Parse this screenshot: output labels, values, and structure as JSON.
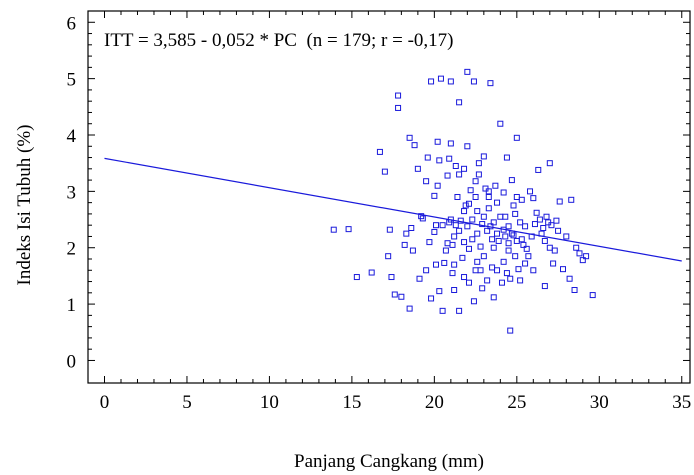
{
  "chart_data": {
    "type": "scatter",
    "annotation": "ITT = 3,585 - 0,052 * PC  (n = 179; r = -0,17)",
    "xlabel": "Panjang Cangkang (mm)",
    "ylabel": "Indeks Isi Tubuh (%)",
    "xlim": [
      -1,
      35.5
    ],
    "ylim": [
      -0.4,
      6.2
    ],
    "x_ticks": [
      0,
      5,
      10,
      15,
      20,
      25,
      30,
      35
    ],
    "y_ticks": [
      0,
      1,
      2,
      3,
      4,
      5,
      6
    ],
    "grid": false,
    "colors": {
      "points": "#1a1adb",
      "line": "#1a1adb",
      "axes": "#000000"
    },
    "regression": {
      "intercept": 3.585,
      "slope": -0.052,
      "x_range": [
        0,
        35
      ]
    },
    "points": [
      [
        13.9,
        2.32
      ],
      [
        14.8,
        2.33
      ],
      [
        15.3,
        1.48
      ],
      [
        16.2,
        1.56
      ],
      [
        16.7,
        3.7
      ],
      [
        17.0,
        3.35
      ],
      [
        17.2,
        1.85
      ],
      [
        17.3,
        2.32
      ],
      [
        17.4,
        1.48
      ],
      [
        17.6,
        1.17
      ],
      [
        17.8,
        4.7
      ],
      [
        17.8,
        4.48
      ],
      [
        18.0,
        1.13
      ],
      [
        18.2,
        2.05
      ],
      [
        18.3,
        2.25
      ],
      [
        18.5,
        0.92
      ],
      [
        18.5,
        3.95
      ],
      [
        18.7,
        1.95
      ],
      [
        18.8,
        3.82
      ],
      [
        19.0,
        3.4
      ],
      [
        19.2,
        2.56
      ],
      [
        19.3,
        2.52
      ],
      [
        19.5,
        3.18
      ],
      [
        19.5,
        1.6
      ],
      [
        19.6,
        3.6
      ],
      [
        19.8,
        4.95
      ],
      [
        19.8,
        1.1
      ],
      [
        20.0,
        2.92
      ],
      [
        20.0,
        2.28
      ],
      [
        20.1,
        1.7
      ],
      [
        20.1,
        2.4
      ],
      [
        20.2,
        3.88
      ],
      [
        20.3,
        1.23
      ],
      [
        20.3,
        3.55
      ],
      [
        20.4,
        5.0
      ],
      [
        20.5,
        0.88
      ],
      [
        20.5,
        2.4
      ],
      [
        20.6,
        1.73
      ],
      [
        20.8,
        3.28
      ],
      [
        20.8,
        2.08
      ],
      [
        20.9,
        3.58
      ],
      [
        21.0,
        4.95
      ],
      [
        21.0,
        3.85
      ],
      [
        21.0,
        2.5
      ],
      [
        21.1,
        1.55
      ],
      [
        21.2,
        2.2
      ],
      [
        21.2,
        1.7
      ],
      [
        21.2,
        1.25
      ],
      [
        21.3,
        3.45
      ],
      [
        21.3,
        2.4
      ],
      [
        21.5,
        4.58
      ],
      [
        21.5,
        3.3
      ],
      [
        21.5,
        2.3
      ],
      [
        21.5,
        0.88
      ],
      [
        21.6,
        2.48
      ],
      [
        21.7,
        1.82
      ],
      [
        21.8,
        3.4
      ],
      [
        21.8,
        2.1
      ],
      [
        21.8,
        1.48
      ],
      [
        21.9,
        2.75
      ],
      [
        22.0,
        5.12
      ],
      [
        22.0,
        3.8
      ],
      [
        22.0,
        2.38
      ],
      [
        22.1,
        1.98
      ],
      [
        22.1,
        1.38
      ],
      [
        22.2,
        3.02
      ],
      [
        22.3,
        2.5
      ],
      [
        22.3,
        2.15
      ],
      [
        22.4,
        4.95
      ],
      [
        22.5,
        3.18
      ],
      [
        22.5,
        1.6
      ],
      [
        22.5,
        2.9
      ],
      [
        22.6,
        2.65
      ],
      [
        22.6,
        2.25
      ],
      [
        22.7,
        3.3
      ],
      [
        22.8,
        2.02
      ],
      [
        22.8,
        1.6
      ],
      [
        22.9,
        1.28
      ],
      [
        23.0,
        3.62
      ],
      [
        23.0,
        2.55
      ],
      [
        23.1,
        3.05
      ],
      [
        23.2,
        2.3
      ],
      [
        23.2,
        1.42
      ],
      [
        23.3,
        3.0
      ],
      [
        23.3,
        2.9
      ],
      [
        23.4,
        4.92
      ],
      [
        23.4,
        2.38
      ],
      [
        23.5,
        2.15
      ],
      [
        23.5,
        1.65
      ],
      [
        23.6,
        2.0
      ],
      [
        23.6,
        2.45
      ],
      [
        23.7,
        3.1
      ],
      [
        23.8,
        2.25
      ],
      [
        23.8,
        1.6
      ],
      [
        23.9,
        2.12
      ],
      [
        24.0,
        4.2
      ],
      [
        24.0,
        2.55
      ],
      [
        24.1,
        1.38
      ],
      [
        24.2,
        2.98
      ],
      [
        24.2,
        1.75
      ],
      [
        24.3,
        2.2
      ],
      [
        24.3,
        2.55
      ],
      [
        24.4,
        3.6
      ],
      [
        24.4,
        1.55
      ],
      [
        24.5,
        2.38
      ],
      [
        24.5,
        1.95
      ],
      [
        24.6,
        0.53
      ],
      [
        24.6,
        1.45
      ],
      [
        24.7,
        3.2
      ],
      [
        24.7,
        2.25
      ],
      [
        24.8,
        2.75
      ],
      [
        24.9,
        1.85
      ],
      [
        25.0,
        3.95
      ],
      [
        25.0,
        2.9
      ],
      [
        25.0,
        2.12
      ],
      [
        25.1,
        1.62
      ],
      [
        25.2,
        2.45
      ],
      [
        25.2,
        1.42
      ],
      [
        25.3,
        2.85
      ],
      [
        25.4,
        2.05
      ],
      [
        25.5,
        2.38
      ],
      [
        25.5,
        1.72
      ],
      [
        25.6,
        1.98
      ],
      [
        25.8,
        3.0
      ],
      [
        25.9,
        2.2
      ],
      [
        26.0,
        1.6
      ],
      [
        26.0,
        2.88
      ],
      [
        26.1,
        2.42
      ],
      [
        26.3,
        3.38
      ],
      [
        26.4,
        2.5
      ],
      [
        26.5,
        2.25
      ],
      [
        26.6,
        2.35
      ],
      [
        26.7,
        1.32
      ],
      [
        26.8,
        2.55
      ],
      [
        26.9,
        2.45
      ],
      [
        27.0,
        3.5
      ],
      [
        27.0,
        2.0
      ],
      [
        27.1,
        2.4
      ],
      [
        27.2,
        1.72
      ],
      [
        27.4,
        2.48
      ],
      [
        27.5,
        2.3
      ],
      [
        27.6,
        2.82
      ],
      [
        27.8,
        1.62
      ],
      [
        28.0,
        2.2
      ],
      [
        28.2,
        1.45
      ],
      [
        28.3,
        2.85
      ],
      [
        28.5,
        1.25
      ],
      [
        28.6,
        2.0
      ],
      [
        28.8,
        1.9
      ],
      [
        29.0,
        1.78
      ],
      [
        29.2,
        1.85
      ],
      [
        29.6,
        1.16
      ],
      [
        21.4,
        2.9
      ],
      [
        22.9,
        2.42
      ],
      [
        23.3,
        2.7
      ],
      [
        24.9,
        2.6
      ],
      [
        20.7,
        1.95
      ],
      [
        19.7,
        2.1
      ],
      [
        22.7,
        3.5
      ],
      [
        26.2,
        2.62
      ],
      [
        21.8,
        2.65
      ],
      [
        23.0,
        1.85
      ],
      [
        24.5,
        2.08
      ],
      [
        18.6,
        2.35
      ],
      [
        22.4,
        1.05
      ],
      [
        25.7,
        1.85
      ],
      [
        20.9,
        2.45
      ],
      [
        23.8,
        2.8
      ],
      [
        21.1,
        2.05
      ],
      [
        26.7,
        2.12
      ],
      [
        22.1,
        2.78
      ],
      [
        24.2,
        2.32
      ],
      [
        20.2,
        3.1
      ],
      [
        23.6,
        1.12
      ],
      [
        25.3,
        2.15
      ],
      [
        22.6,
        1.75
      ],
      [
        27.3,
        1.95
      ],
      [
        19.1,
        1.45
      ],
      [
        24.8,
        2.22
      ]
    ]
  }
}
